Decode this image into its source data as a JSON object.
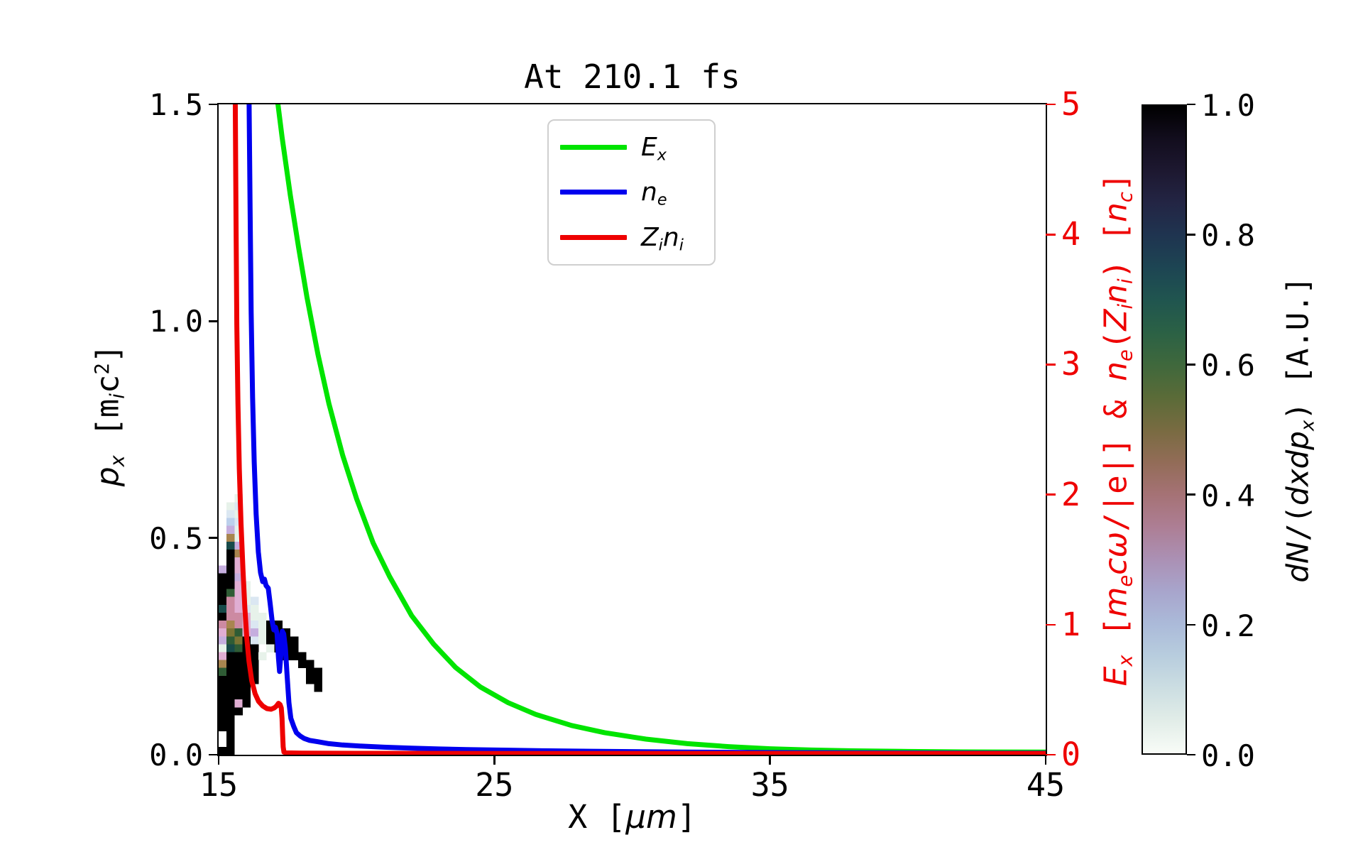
{
  "title": "At 210.1 fs",
  "legend": {
    "items": [
      {
        "name": "Ex",
        "label_html": "E<sub>x</sub>",
        "color": "#00e400"
      },
      {
        "name": "ne",
        "label_html": "n<sub>e</sub>",
        "color": "#0000ee"
      },
      {
        "name": "Zini",
        "label_html": "Z<sub>i</sub>n<sub>i</sub>",
        "color": "#ee0000"
      }
    ]
  },
  "axes": {
    "x": {
      "label_html": "X [<i>μm</i>]",
      "range": [
        15,
        45
      ],
      "tick_values": [
        15,
        25,
        35,
        45
      ],
      "tick_labels": [
        "15",
        "25",
        "35",
        "45"
      ]
    },
    "y_left": {
      "label_html": "<i>p</i><sub><i>x</i></sub> [m<sub><i>i</i></sub>c<sup>2</sup>]",
      "range": [
        0,
        1.5
      ],
      "tick_values": [
        0,
        0.5,
        1.0,
        1.5
      ],
      "tick_labels": [
        "0.0",
        "0.5",
        "1.0",
        "1.5"
      ]
    },
    "y_right": {
      "label_html": "<i>E</i><sub><i>x</i></sub> [<i>m</i><sub><i>e</i></sub><i>cω</i>/|e|] &amp; <i>n</i><sub><i>e</i></sub>(<i>Z</i><sub><i>i</i></sub><i>n</i><sub><i>i</i></sub>) [<i>n</i><sub><i>c</i></sub>]",
      "range": [
        0,
        5
      ],
      "tick_values": [
        0,
        1,
        2,
        3,
        4,
        5
      ],
      "tick_labels": [
        "0",
        "1",
        "2",
        "3",
        "4",
        "5"
      ],
      "color": "#ee0000"
    }
  },
  "colorbar": {
    "label_html": "<i>dN</i>/(<i>dxdp</i><sub><i>x</i></sub>) [A.U.]",
    "tick_values": [
      1.0,
      0.8,
      0.6,
      0.4,
      0.2,
      0.0
    ],
    "tick_labels": [
      "1.0",
      "0.8",
      "0.6",
      "0.4",
      "0.2",
      "0.0"
    ],
    "gradient_top_to_bottom": [
      "#000000",
      "#120d1d",
      "#1d1830",
      "#232544",
      "#1f3450",
      "#1d4553",
      "#20554f",
      "#2b6145",
      "#3f683c",
      "#5a6b38",
      "#786b41",
      "#926c57",
      "#a57275",
      "#ad7e94",
      "#ab90b4",
      "#a8a5cc",
      "#abbad9",
      "#b8cdde",
      "#ccdee2",
      "#e2ede8",
      "#f8fcf7"
    ]
  },
  "chart_data": {
    "type": "composite",
    "title": "At 210.1 fs",
    "xlabel": "X [μm]",
    "xlim": [
      15,
      45
    ],
    "ylabel_left": "p_x [m_i c^2]",
    "ylim_left": [
      0,
      1.5
    ],
    "ylabel_right": "E_x [m_e c ω/|e|] & n_e(Z_i n_i) [n_c]",
    "ylim_right": [
      0,
      5
    ],
    "legend_position": "upper center-left inside",
    "grid": false,
    "series": [
      {
        "id": "curve-green",
        "name": "E_x",
        "type": "line",
        "axis": "right",
        "color": "#00e400",
        "linewidth": 7,
        "points": [
          [
            17.08,
            5.12
          ],
          [
            17.3,
            4.75
          ],
          [
            17.6,
            4.3
          ],
          [
            17.9,
            3.9
          ],
          [
            18.2,
            3.52
          ],
          [
            18.6,
            3.08
          ],
          [
            19.0,
            2.7
          ],
          [
            19.5,
            2.3
          ],
          [
            20.0,
            1.97
          ],
          [
            20.6,
            1.63
          ],
          [
            21.2,
            1.37
          ],
          [
            22.0,
            1.07
          ],
          [
            22.8,
            0.85
          ],
          [
            23.6,
            0.67
          ],
          [
            24.5,
            0.52
          ],
          [
            25.5,
            0.4
          ],
          [
            26.5,
            0.31
          ],
          [
            27.8,
            0.225
          ],
          [
            29.0,
            0.17
          ],
          [
            30.5,
            0.12
          ],
          [
            32.0,
            0.085
          ],
          [
            33.5,
            0.062
          ],
          [
            35.0,
            0.046
          ],
          [
            36.5,
            0.036
          ],
          [
            38.0,
            0.03
          ],
          [
            40.0,
            0.025
          ],
          [
            42.0,
            0.022
          ],
          [
            45.0,
            0.02
          ]
        ]
      },
      {
        "id": "curve-blue",
        "name": "n_e",
        "type": "line",
        "axis": "right",
        "color": "#0000ee",
        "linewidth": 7,
        "points": [
          [
            16.1,
            5.12
          ],
          [
            16.14,
            4.2
          ],
          [
            16.18,
            3.4
          ],
          [
            16.23,
            2.75
          ],
          [
            16.29,
            2.25
          ],
          [
            16.36,
            1.85
          ],
          [
            16.44,
            1.56
          ],
          [
            16.52,
            1.4
          ],
          [
            16.6,
            1.33
          ],
          [
            16.66,
            1.35
          ],
          [
            16.72,
            1.3
          ],
          [
            16.8,
            1.28
          ],
          [
            16.87,
            1.16
          ],
          [
            16.94,
            1.03
          ],
          [
            17.0,
            0.96
          ],
          [
            17.06,
            0.98
          ],
          [
            17.12,
            0.93
          ],
          [
            17.17,
            0.74
          ],
          [
            17.21,
            0.64
          ],
          [
            17.26,
            0.78
          ],
          [
            17.31,
            0.95
          ],
          [
            17.36,
            0.93
          ],
          [
            17.42,
            0.82
          ],
          [
            17.48,
            0.62
          ],
          [
            17.55,
            0.4
          ],
          [
            17.62,
            0.28
          ],
          [
            17.72,
            0.22
          ],
          [
            17.82,
            0.17
          ],
          [
            17.95,
            0.145
          ],
          [
            18.1,
            0.125
          ],
          [
            18.3,
            0.11
          ],
          [
            18.6,
            0.1
          ],
          [
            19.0,
            0.085
          ],
          [
            19.5,
            0.075
          ],
          [
            20.2,
            0.066
          ],
          [
            21.0,
            0.058
          ],
          [
            22.0,
            0.05
          ],
          [
            23.0,
            0.044
          ],
          [
            24.0,
            0.04
          ],
          [
            25.5,
            0.035
          ],
          [
            27.0,
            0.03
          ],
          [
            28.5,
            0.027
          ],
          [
            30.0,
            0.024
          ],
          [
            32.0,
            0.021
          ],
          [
            34.0,
            0.018
          ],
          [
            36.0,
            0.016
          ],
          [
            38.5,
            0.014
          ],
          [
            41.0,
            0.013
          ],
          [
            45.0,
            0.012
          ]
        ]
      },
      {
        "id": "curve-red",
        "name": "Z_i n_i",
        "type": "line",
        "axis": "right",
        "color": "#ee0000",
        "linewidth": 7,
        "points": [
          [
            15.6,
            5.12
          ],
          [
            15.63,
            4.1
          ],
          [
            15.66,
            3.3
          ],
          [
            15.7,
            2.7
          ],
          [
            15.75,
            2.2
          ],
          [
            15.81,
            1.78
          ],
          [
            15.88,
            1.43
          ],
          [
            15.95,
            1.13
          ],
          [
            16.02,
            0.9
          ],
          [
            16.1,
            0.72
          ],
          [
            16.2,
            0.57
          ],
          [
            16.32,
            0.47
          ],
          [
            16.45,
            0.41
          ],
          [
            16.6,
            0.375
          ],
          [
            16.75,
            0.355
          ],
          [
            16.9,
            0.35
          ],
          [
            17.02,
            0.36
          ],
          [
            17.1,
            0.375
          ],
          [
            17.17,
            0.395
          ],
          [
            17.23,
            0.385
          ],
          [
            17.27,
            0.36
          ],
          [
            17.3,
            0.28
          ],
          [
            17.32,
            0.16
          ],
          [
            17.34,
            0.06
          ],
          [
            17.37,
            0.02
          ],
          [
            17.45,
            0.014
          ],
          [
            18.0,
            0.012
          ],
          [
            20.0,
            0.011
          ],
          [
            25.0,
            0.01
          ],
          [
            30.0,
            0.01
          ],
          [
            38.0,
            0.01
          ],
          [
            45.0,
            0.01
          ]
        ]
      }
    ],
    "heatmap": {
      "name": "dN/(dxdp_x) phase-space density",
      "axis": "left",
      "colormap": "white(0) to black(1) cubehelix-like",
      "x0": 15.0,
      "p_top": 0.6006,
      "cell_dx": 0.2883,
      "cell_dy": 0.0182,
      "palette": {
        "a": "#e7f2ea",
        "b": "#dbe7f2",
        "c": "#bcd0ec",
        "d": "#c5aede",
        "e": "#e0aed3",
        "f": "#cc8aa2",
        "h": "#a8854f",
        "i": "#7c7434",
        "j": "#2f5c35",
        "k": "#174a49",
        "m": "#201c38",
        "B": "#000000"
      },
      "grid": [
        "..a..........",
        ".ab..........",
        ".ba..........",
        ".cb..........",
        ".da..........",
        ".ha..........",
        ".kd..........",
        ".Bh..........",
        ".Be..........",
        "dBe..........",
        "BBd..........",
        "BBea.........",
        "Bjea.........",
        "Bfeab........",
        "kfeba........",
        "Bffeaa.......",
        "fhfebaBB.....",
        "eijedaBBB....",
        "djiBbaBBBB...",
        "akjBB.aBBB...",
        "eBBBBa..BBB..",
        "hBBBB.....BB.",
        "jBBBB......BB",
        "BBBBB......BB",
        "BBBB........B",
        "BBBB.........",
        "BBeB.........",
        "BBB..........",
        "BB...........",
        "BB...........",
        ".B...........",
        ".B...........",
        "BB..........."
      ]
    }
  }
}
